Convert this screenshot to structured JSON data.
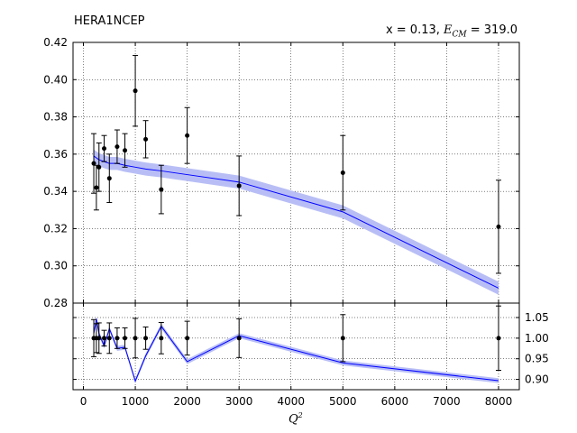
{
  "header": {
    "title": "HERA1NCEP",
    "kin_prefix": "x = 0.13, ",
    "kin_sym": "E",
    "kin_sub": "CM",
    "kin_suffix": " = 319.0"
  },
  "chart_data": [
    {
      "type": "scatter",
      "panel": "main",
      "xlim": [
        -200,
        8400
      ],
      "ylim": [
        0.28,
        0.42
      ],
      "yticks": [
        "0.28",
        "0.30",
        "0.32",
        "0.34",
        "0.36",
        "0.38",
        "0.40",
        "0.42"
      ],
      "ytick_values": [
        0.28,
        0.3,
        0.32,
        0.34,
        0.36,
        0.38,
        0.4,
        0.42
      ],
      "grid": true,
      "data_points": {
        "x": [
          200,
          250,
          300,
          400,
          500,
          650,
          800,
          1000,
          1200,
          1500,
          2000,
          3000,
          5000,
          8000
        ],
        "y": [
          0.355,
          0.342,
          0.353,
          0.363,
          0.347,
          0.364,
          0.362,
          0.394,
          0.368,
          0.341,
          0.37,
          0.343,
          0.35,
          0.321
        ],
        "yerr": [
          0.016,
          0.012,
          0.013,
          0.007,
          0.013,
          0.009,
          0.009,
          0.019,
          0.01,
          0.013,
          0.015,
          0.016,
          0.02,
          0.025
        ]
      },
      "theory": {
        "x": [
          200,
          250,
          300,
          400,
          500,
          650,
          800,
          1000,
          1200,
          1500,
          2000,
          3000,
          5000,
          8000
        ],
        "y": [
          0.359,
          0.358,
          0.357,
          0.356,
          0.355,
          0.355,
          0.354,
          0.353,
          0.352,
          0.351,
          0.349,
          0.345,
          0.329,
          0.288
        ],
        "band": 0.0035,
        "color": "#0000ff",
        "band_color": "#b8bef5"
      }
    },
    {
      "type": "scatter",
      "panel": "ratio",
      "xlim": [
        -200,
        8400
      ],
      "ylim": [
        0.875,
        1.085
      ],
      "xticks": [
        "0",
        "1000",
        "2000",
        "3000",
        "4000",
        "5000",
        "6000",
        "7000",
        "8000"
      ],
      "xtick_values": [
        0,
        1000,
        2000,
        3000,
        4000,
        5000,
        6000,
        7000,
        8000
      ],
      "yticks": [
        "0.90",
        "0.95",
        "1.00",
        "1.05"
      ],
      "ytick_values": [
        0.9,
        0.95,
        1.0,
        1.05
      ],
      "xlabel_sym": "Q",
      "xlabel_sup": "2",
      "grid": true,
      "data_points": {
        "x": [
          200,
          250,
          300,
          400,
          500,
          650,
          800,
          1000,
          1200,
          1500,
          2000,
          3000,
          5000,
          8000
        ],
        "y": [
          1,
          1,
          1,
          1,
          1,
          1,
          1,
          1,
          1,
          1,
          1,
          1,
          1,
          1
        ],
        "yerr": [
          0.045,
          0.035,
          0.037,
          0.019,
          0.037,
          0.025,
          0.025,
          0.048,
          0.027,
          0.038,
          0.041,
          0.047,
          0.057,
          0.078
        ]
      },
      "theory": {
        "x": [
          200,
          250,
          300,
          400,
          500,
          650,
          800,
          1000,
          1200,
          1500,
          2000,
          3000,
          5000,
          8000
        ],
        "y": [
          1.011,
          1.047,
          1.011,
          0.981,
          1.023,
          0.975,
          0.978,
          0.896,
          0.957,
          1.029,
          0.943,
          1.006,
          0.94,
          0.897
        ],
        "band": 0.006
      }
    }
  ]
}
